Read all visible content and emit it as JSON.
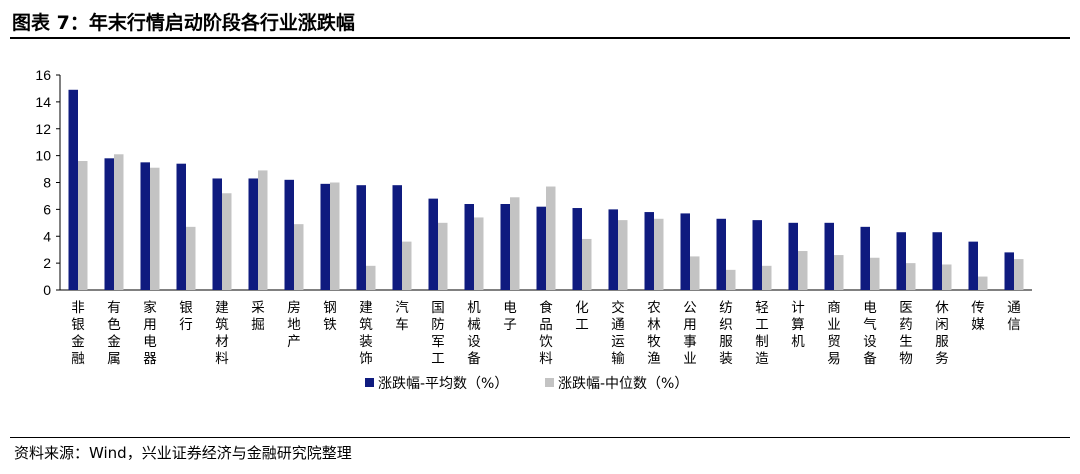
{
  "title": "图表 7：年末行情启动阶段各行业涨跌幅",
  "source": "资料来源：Wind，兴业证券经济与金融研究院整理",
  "colors": {
    "series1": "#0f1b7f",
    "series2": "#c3c3c3",
    "axis": "#000000"
  },
  "chart_data": {
    "type": "bar",
    "title": "",
    "xlabel": "",
    "ylabel": "",
    "ylim": [
      0,
      16
    ],
    "yticks": [
      0,
      2,
      4,
      6,
      8,
      10,
      12,
      14,
      16
    ],
    "grid": false,
    "legend_position": "bottom-center",
    "categories": [
      "非银金融",
      "有色金属",
      "家用电器",
      "银行",
      "建筑材料",
      "采掘",
      "房地产",
      "钢铁",
      "建筑装饰",
      "汽车",
      "国防军工",
      "机械设备",
      "电子",
      "食品饮料",
      "化工",
      "交通运输",
      "农林牧渔",
      "公用事业",
      "纺织服装",
      "轻工制造",
      "计算机",
      "商业贸易",
      "电气设备",
      "医药生物",
      "休闲服务",
      "传媒",
      "通信"
    ],
    "series": [
      {
        "name": "涨跌幅-平均数（%）",
        "values": [
          14.9,
          9.8,
          9.5,
          9.4,
          8.3,
          8.3,
          8.2,
          7.9,
          7.8,
          7.8,
          6.8,
          6.4,
          6.4,
          6.2,
          6.1,
          6.0,
          5.8,
          5.7,
          5.3,
          5.2,
          5.0,
          5.0,
          4.7,
          4.3,
          4.3,
          3.6,
          2.8
        ]
      },
      {
        "name": "涨跌幅-中位数（%）",
        "values": [
          9.6,
          10.1,
          9.1,
          4.7,
          7.2,
          8.9,
          4.9,
          8.0,
          1.8,
          3.6,
          5.0,
          5.4,
          6.9,
          7.7,
          3.8,
          5.2,
          5.3,
          2.5,
          1.5,
          1.8,
          2.9,
          2.6,
          2.4,
          2.0,
          1.9,
          1.0,
          2.3
        ]
      }
    ]
  }
}
